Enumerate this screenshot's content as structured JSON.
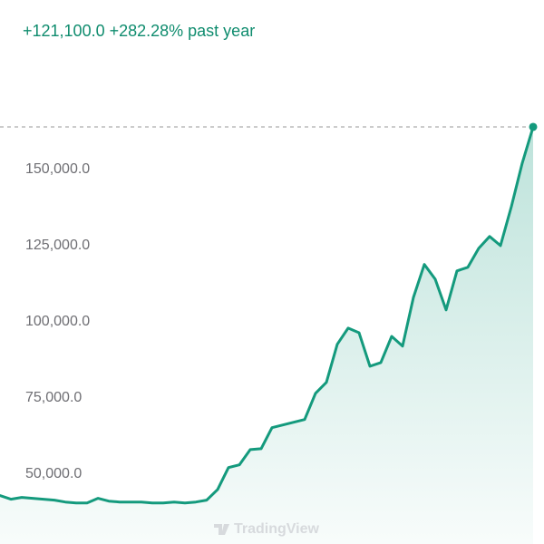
{
  "chart_data": {
    "type": "area",
    "subtitle": "+121,100.0 +282.28% past year",
    "watermark": "TradingView",
    "color": "#149a7d",
    "values": [
      42900,
      41700,
      42300,
      42000,
      41700,
      41400,
      40800,
      40500,
      40500,
      42000,
      41100,
      40800,
      40800,
      40800,
      40500,
      40500,
      40800,
      40500,
      40800,
      41400,
      44900,
      52100,
      53000,
      58000,
      58300,
      65200,
      66100,
      67000,
      67900,
      76500,
      80100,
      92600,
      97900,
      96400,
      85400,
      86600,
      95200,
      92000,
      108000,
      118800,
      114000,
      103900,
      116700,
      117900,
      124100,
      128000,
      125000,
      137800,
      152100,
      164000
    ],
    "ylim": [
      27000,
      175900
    ],
    "yticks": [
      {
        "value": 50000,
        "label": "50,000.0"
      },
      {
        "value": 75000,
        "label": "75,000.0"
      },
      {
        "value": 100000,
        "label": "100,000.0"
      },
      {
        "value": 125000,
        "label": "125,000.0"
      },
      {
        "value": 150000,
        "label": "150,000.0"
      }
    ],
    "grid": false
  }
}
